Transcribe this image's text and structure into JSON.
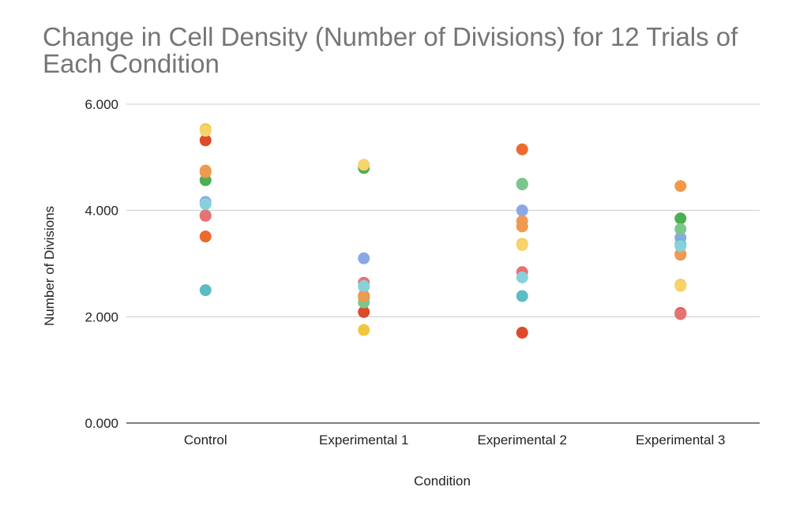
{
  "chart_data": {
    "type": "scatter",
    "title": "Change in Cell Density (Number of Divisions) for 12 Trials of Each Condition",
    "xlabel": "Condition",
    "ylabel": "Number of Divisions",
    "categories": [
      "Control",
      "Experimental 1",
      "Experimental 2",
      "Experimental 3"
    ],
    "ylim": [
      0,
      6
    ],
    "y_ticks": [
      "0.000",
      "2.000",
      "4.000",
      "6.000"
    ],
    "grid": true,
    "legend": "none",
    "series": [
      {
        "color": "#dd4b2a",
        "values": [
          5.32,
          2.09,
          1.7,
          2.07
        ]
      },
      {
        "color": "#f2c53d",
        "values": [
          5.53,
          1.75,
          3.37,
          2.6
        ]
      },
      {
        "color": "#f2994a",
        "values": [
          4.75,
          2.4,
          3.7,
          4.46
        ]
      },
      {
        "color": "#4caf50",
        "values": [
          4.57,
          4.8,
          4.5,
          3.85
        ]
      },
      {
        "color": "#ee6a2c",
        "values": [
          3.51,
          2.37,
          5.15,
          3.17
        ]
      },
      {
        "color": "#8aa8e8",
        "values": [
          4.16,
          3.1,
          4.0,
          3.49
        ]
      },
      {
        "color": "#7cc68c",
        "values": [
          3.91,
          2.27,
          4.49,
          3.65
        ]
      },
      {
        "color": "#5cbcc6",
        "values": [
          2.5,
          2.57,
          2.39,
          3.36
        ]
      },
      {
        "color": "#ef9a52",
        "values": [
          4.72,
          2.39,
          3.8,
          3.18
        ]
      },
      {
        "color": "#f7d36a",
        "values": [
          5.5,
          4.86,
          3.35,
          2.58
        ]
      },
      {
        "color": "#e57373",
        "values": [
          3.9,
          2.64,
          2.84,
          2.05
        ]
      },
      {
        "color": "#88d1dc",
        "values": [
          4.12,
          2.58,
          2.74,
          3.33
        ]
      }
    ]
  }
}
